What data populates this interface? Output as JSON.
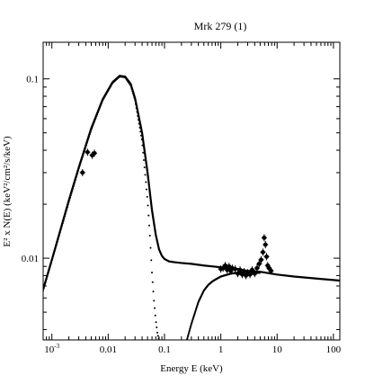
{
  "chart_data": {
    "type": "scatter",
    "title": "Mrk 279 (1)",
    "xlabel": "Energy E (keV)",
    "ylabel": "E² x N(E) (keV²/cm²/s/keV)",
    "x_scale": "log",
    "y_scale": "log",
    "xlim": [
      0.0007,
      130
    ],
    "ylim": [
      0.0035,
      0.16
    ],
    "x_ticks": [
      {
        "value": 0.001,
        "label": "10",
        "sup": "-3"
      },
      {
        "value": 0.01,
        "label": "0.01",
        "sup": ""
      },
      {
        "value": 0.1,
        "label": "0.1",
        "sup": ""
      },
      {
        "value": 1,
        "label": "1",
        "sup": ""
      },
      {
        "value": 10,
        "label": "10",
        "sup": ""
      },
      {
        "value": 100,
        "label": "100",
        "sup": ""
      }
    ],
    "y_ticks": [
      {
        "value": 0.01,
        "label": "0.01"
      },
      {
        "value": 0.1,
        "label": "0.1"
      }
    ],
    "series": [
      {
        "kind": "total-model",
        "x": [
          0.0007,
          0.001,
          0.002,
          0.003,
          0.005,
          0.008,
          0.012,
          0.016,
          0.02,
          0.025,
          0.03,
          0.04,
          0.05,
          0.06,
          0.07,
          0.08,
          0.09,
          0.1,
          0.12,
          0.15,
          0.2,
          0.3,
          0.5,
          1,
          2,
          3,
          5,
          10,
          20,
          50,
          130
        ],
        "y": [
          0.0067,
          0.0098,
          0.021,
          0.032,
          0.053,
          0.077,
          0.096,
          0.104,
          0.103,
          0.094,
          0.078,
          0.05,
          0.03,
          0.0185,
          0.0135,
          0.0112,
          0.0103,
          0.0099,
          0.0096,
          0.0095,
          0.0094,
          0.0093,
          0.0091,
          0.0089,
          0.0087,
          0.0085,
          0.0084,
          0.0081,
          0.0079,
          0.0077,
          0.0075
        ]
      },
      {
        "kind": "blackbody-component",
        "x": [
          0.0007,
          0.001,
          0.002,
          0.003,
          0.005,
          0.008,
          0.012,
          0.016,
          0.02,
          0.025,
          0.03,
          0.04,
          0.05,
          0.055,
          0.06,
          0.065,
          0.07,
          0.075,
          0.08
        ],
        "y": [
          0.0066,
          0.0097,
          0.0205,
          0.0315,
          0.052,
          0.076,
          0.095,
          0.103,
          0.102,
          0.092,
          0.076,
          0.045,
          0.021,
          0.0135,
          0.0082,
          0.0058,
          0.0045,
          0.0038,
          0.0035
        ]
      },
      {
        "kind": "powerlaw-component",
        "x": [
          0.25,
          0.3,
          0.35,
          0.4,
          0.5,
          0.6,
          0.7,
          0.8,
          1,
          1.5,
          2,
          3,
          5
        ],
        "y": [
          0.0035,
          0.0043,
          0.005,
          0.0057,
          0.0066,
          0.0071,
          0.0074,
          0.0076,
          0.0079,
          0.0082,
          0.0083,
          0.0083,
          0.0083
        ]
      },
      {
        "kind": "optical-uv-data",
        "x": [
          0.0035,
          0.0043,
          0.0052,
          0.0057
        ],
        "y": [
          0.03,
          0.039,
          0.0375,
          0.0385
        ]
      },
      {
        "kind": "xray-data",
        "x": [
          1.0,
          1.1,
          1.2,
          1.3,
          1.4,
          1.5,
          1.6,
          1.8,
          2.0,
          2.2,
          2.4,
          2.6,
          2.8,
          3.0,
          3.3,
          3.6,
          4.0,
          4.4,
          4.8,
          5.2,
          5.6,
          5.9,
          6.2,
          6.5,
          6.8,
          7.2,
          7.8
        ],
        "y": [
          0.0087,
          0.0088,
          0.0091,
          0.0086,
          0.009,
          0.0085,
          0.0088,
          0.0087,
          0.0082,
          0.0086,
          0.0081,
          0.0084,
          0.008,
          0.0083,
          0.0081,
          0.0086,
          0.0082,
          0.0088,
          0.0093,
          0.0098,
          0.0108,
          0.013,
          0.0119,
          0.0102,
          0.0091,
          0.0088,
          0.0085
        ]
      }
    ],
    "grid": false,
    "legend": "none"
  }
}
